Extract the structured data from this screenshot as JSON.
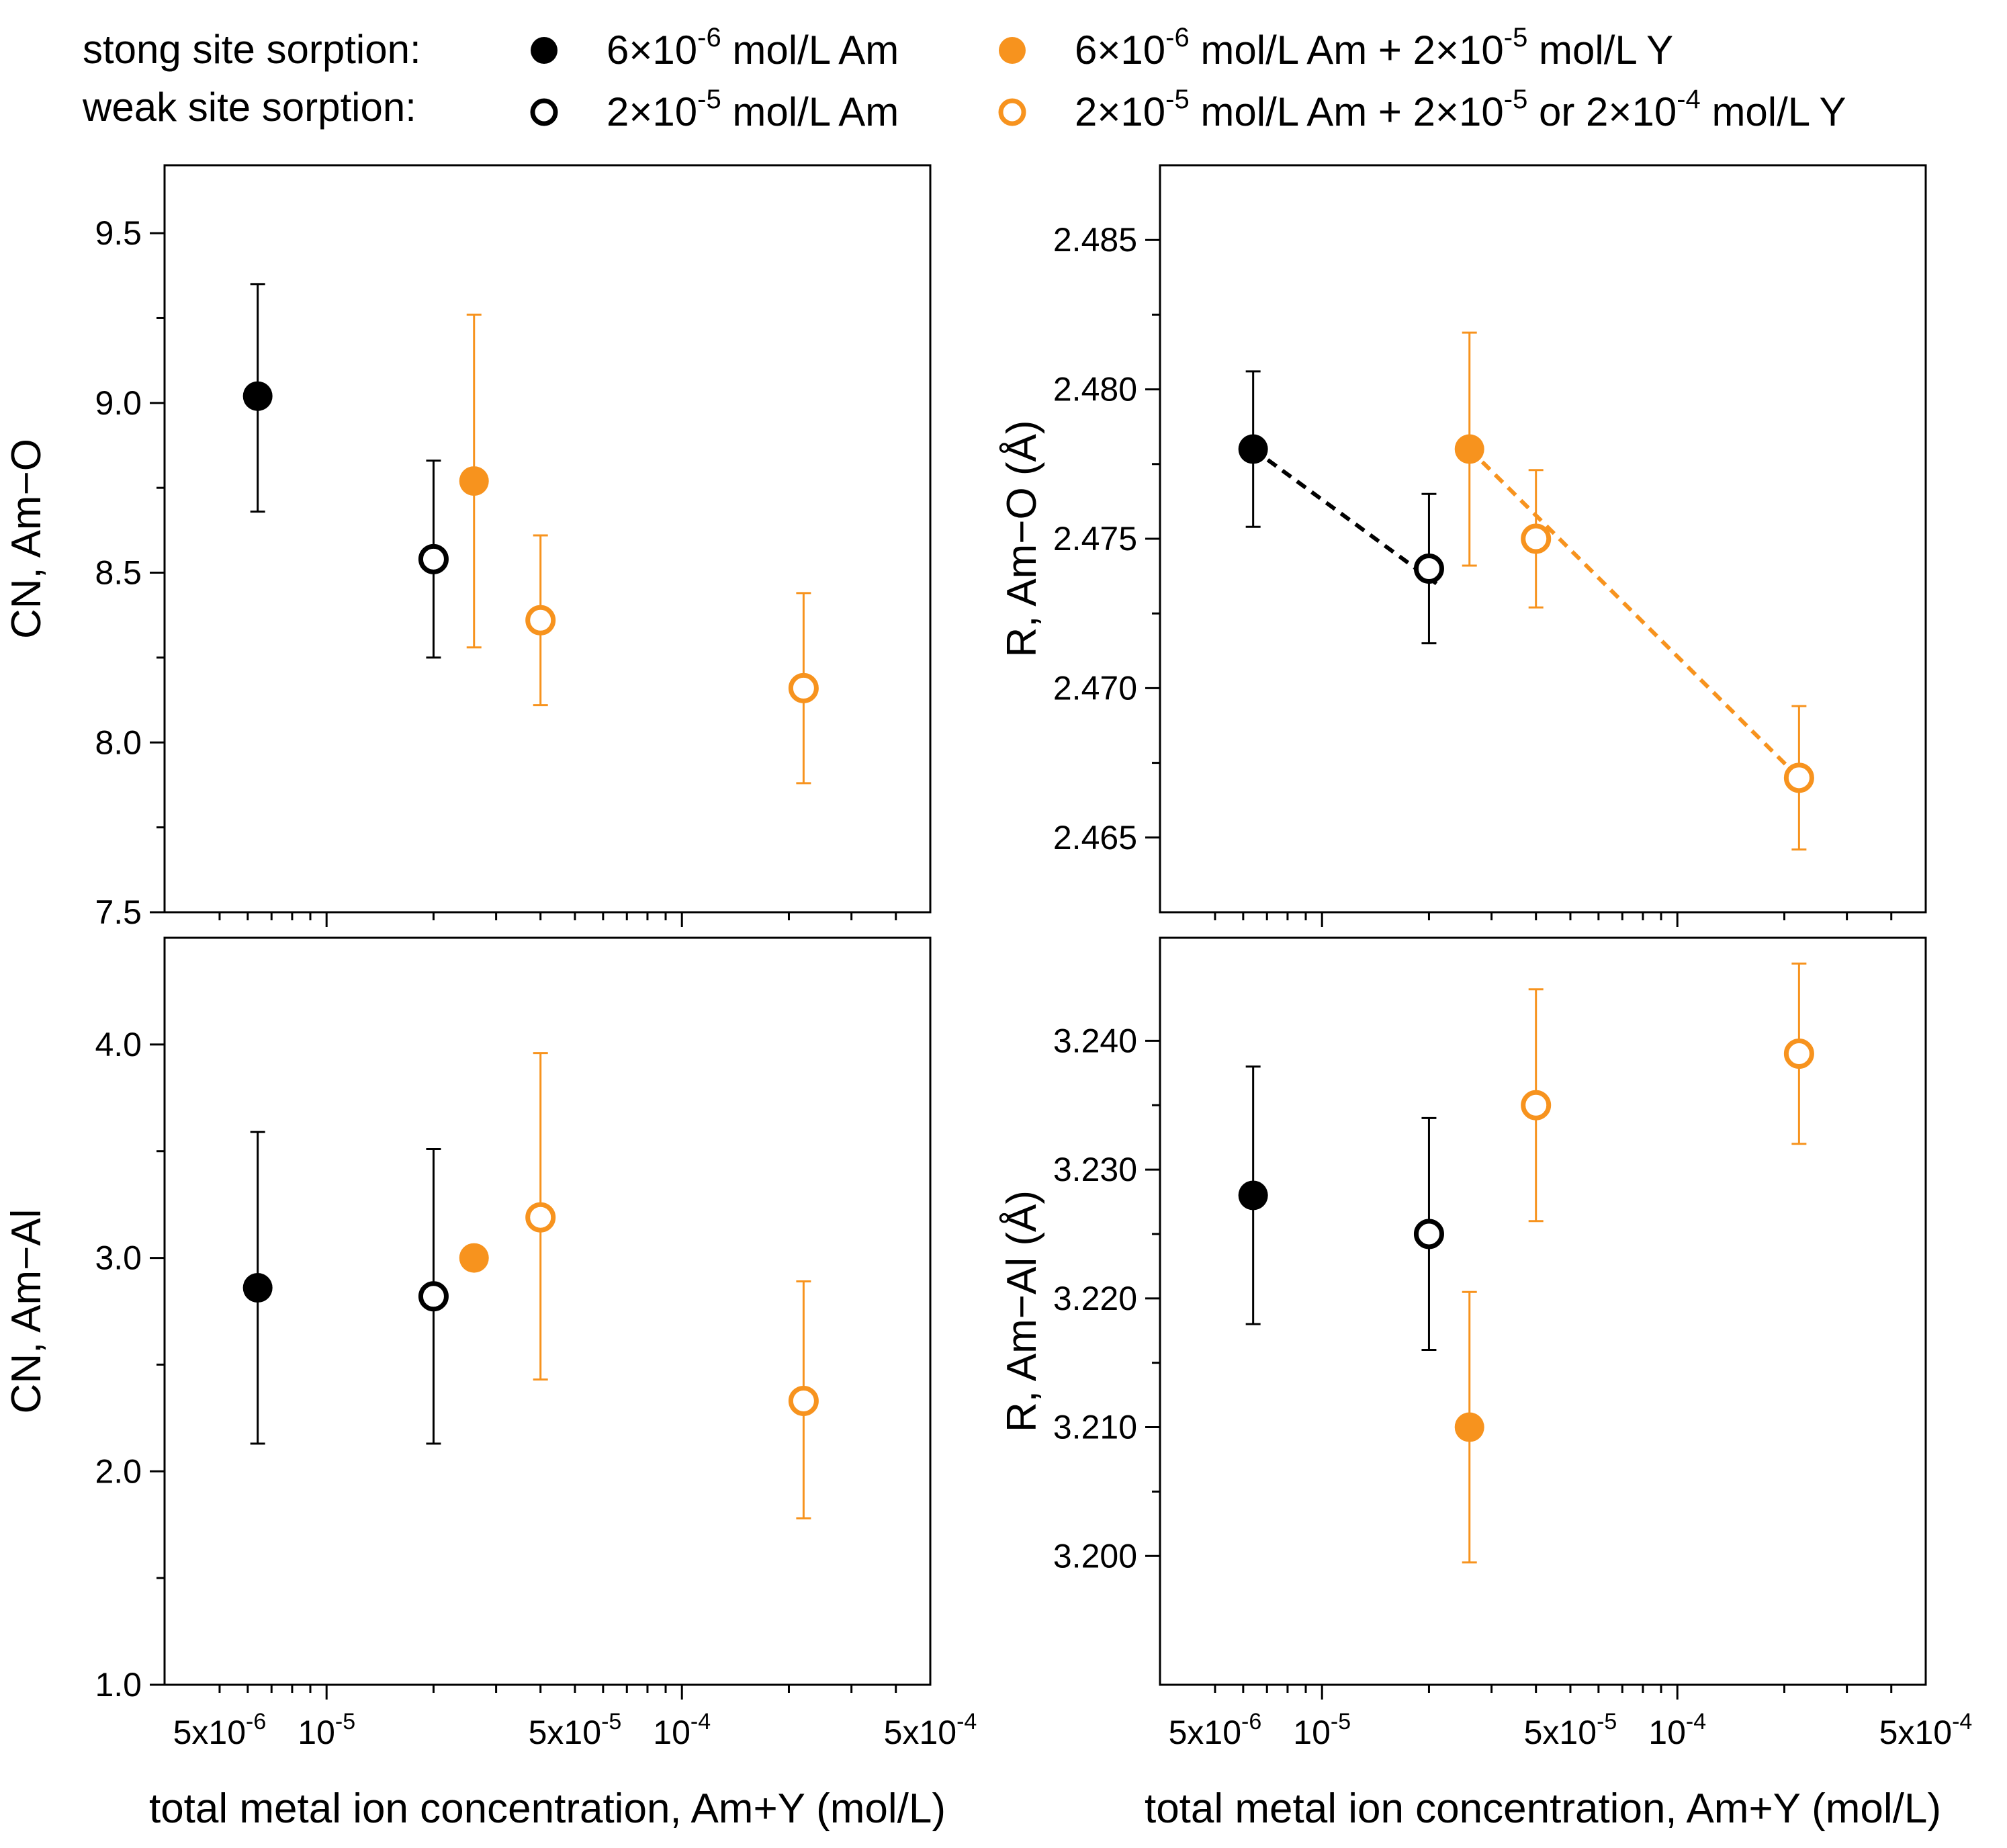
{
  "colors": {
    "black": "#000000",
    "orange": "#f7931e",
    "background": "#ffffff"
  },
  "legend": {
    "row1_label": "stong site sorption:",
    "row2_label": "weak site sorption:",
    "entries": [
      {
        "id": "strong_am",
        "marker": "filled",
        "color": "#000000",
        "parts": [
          [
            "6×10",
            ""
          ],
          [
            "-6",
            "sup"
          ],
          [
            " mol/L Am",
            ""
          ]
        ]
      },
      {
        "id": "strong_amy",
        "marker": "filled",
        "color": "#f7931e",
        "parts": [
          [
            "6×10",
            ""
          ],
          [
            "-6",
            "sup"
          ],
          [
            " mol/L Am + 2×10",
            ""
          ],
          [
            "-5",
            "sup"
          ],
          [
            " mol/L Y",
            ""
          ]
        ]
      },
      {
        "id": "weak_am",
        "marker": "open",
        "color": "#000000",
        "parts": [
          [
            "2×10",
            ""
          ],
          [
            "-5",
            "sup"
          ],
          [
            " mol/L Am",
            ""
          ]
        ]
      },
      {
        "id": "weak_amy",
        "marker": "open",
        "color": "#f7931e",
        "parts": [
          [
            "2×10",
            ""
          ],
          [
            "-5",
            "sup"
          ],
          [
            " mol/L Am + 2×10",
            ""
          ],
          [
            "-5",
            "sup"
          ],
          [
            " or 2×10",
            ""
          ],
          [
            "-4",
            "sup"
          ],
          [
            " mol/L Y",
            ""
          ]
        ]
      }
    ]
  },
  "x_axis": {
    "label": "total metal ion concentration, Am+Y (mol/L)",
    "scale": "log",
    "range": [
      3.5e-06,
      0.0005
    ],
    "tick_labels": [
      {
        "value": 5e-06,
        "parts": [
          [
            "5x10",
            ""
          ],
          [
            "-6",
            "sup"
          ]
        ]
      },
      {
        "value": 1e-05,
        "parts": [
          [
            "10",
            ""
          ],
          [
            "-5",
            "sup"
          ]
        ]
      },
      {
        "value": 5e-05,
        "parts": [
          [
            "5x10",
            ""
          ],
          [
            "-5",
            "sup"
          ]
        ]
      },
      {
        "value": 0.0001,
        "parts": [
          [
            "10",
            ""
          ],
          [
            "-4",
            "sup"
          ]
        ]
      },
      {
        "value": 0.0005,
        "parts": [
          [
            "5x10",
            ""
          ],
          [
            "-4",
            "sup"
          ]
        ]
      }
    ],
    "major_ticks": [
      1e-05,
      0.0001
    ],
    "minor_ticks": [
      5e-06,
      6e-06,
      7e-06,
      8e-06,
      9e-06,
      2e-05,
      3e-05,
      4e-05,
      5e-05,
      6e-05,
      7e-05,
      8e-05,
      9e-05,
      0.0002,
      0.0003,
      0.0004
    ]
  },
  "chart_data": [
    {
      "id": "cn_amo",
      "type": "scatter",
      "position": "top-left",
      "ylabel": "CN, Am−O",
      "ylim": [
        7.5,
        9.7
      ],
      "yticks": [
        7.5,
        8.0,
        8.5,
        9.0,
        9.5
      ],
      "ytick_labels": [
        "7.5",
        "8.0",
        "8.5",
        "9.0",
        "9.5"
      ],
      "show_x_tick_labels": false,
      "points": [
        {
          "x": 6.4e-06,
          "y": 9.02,
          "err_low": 8.68,
          "err_high": 9.35,
          "marker": "filled",
          "color": "#000000"
        },
        {
          "x": 2e-05,
          "y": 8.54,
          "err_low": 8.25,
          "err_high": 8.83,
          "marker": "open",
          "color": "#000000"
        },
        {
          "x": 2.6e-05,
          "y": 8.77,
          "err_low": 8.28,
          "err_high": 9.26,
          "marker": "filled",
          "color": "#f7931e"
        },
        {
          "x": 4e-05,
          "y": 8.36,
          "err_low": 8.11,
          "err_high": 8.61,
          "marker": "open",
          "color": "#f7931e"
        },
        {
          "x": 0.00022,
          "y": 8.16,
          "err_low": 7.88,
          "err_high": 8.44,
          "marker": "open",
          "color": "#f7931e"
        }
      ],
      "lines": []
    },
    {
      "id": "r_amo",
      "type": "scatter",
      "position": "top-right",
      "ylabel": "R, Am−O (Å)",
      "ylim": [
        2.4625,
        2.4875
      ],
      "yticks": [
        2.465,
        2.47,
        2.475,
        2.48,
        2.485
      ],
      "ytick_labels": [
        "2.465",
        "2.470",
        "2.475",
        "2.480",
        "2.485"
      ],
      "show_x_tick_labels": false,
      "points": [
        {
          "x": 6.4e-06,
          "y": 2.478,
          "err_low": 2.4754,
          "err_high": 2.4806,
          "marker": "filled",
          "color": "#000000"
        },
        {
          "x": 2e-05,
          "y": 2.474,
          "err_low": 2.4715,
          "err_high": 2.4765,
          "marker": "open",
          "color": "#000000"
        },
        {
          "x": 2.6e-05,
          "y": 2.478,
          "err_low": 2.4741,
          "err_high": 2.4819,
          "marker": "filled",
          "color": "#f7931e"
        },
        {
          "x": 4e-05,
          "y": 2.475,
          "err_low": 2.4727,
          "err_high": 2.4773,
          "marker": "open",
          "color": "#f7931e"
        },
        {
          "x": 0.00022,
          "y": 2.467,
          "err_low": 2.4646,
          "err_high": 2.4694,
          "marker": "open",
          "color": "#f7931e"
        }
      ],
      "lines": [
        {
          "color": "#000000",
          "style": "dashed",
          "x": [
            6.4e-06,
            2.1e-05
          ],
          "y": [
            2.478,
            2.4735
          ]
        },
        {
          "color": "#f7931e",
          "style": "dashed",
          "x": [
            2.6e-05,
            0.00022
          ],
          "y": [
            2.478,
            2.467
          ]
        }
      ]
    },
    {
      "id": "cn_amal",
      "type": "scatter",
      "position": "bottom-left",
      "ylabel": "CN, Am−Al",
      "ylim": [
        1.0,
        4.5
      ],
      "yticks": [
        1.0,
        2.0,
        3.0,
        4.0
      ],
      "ytick_labels": [
        "1.0",
        "2.0",
        "3.0",
        "4.0"
      ],
      "show_x_tick_labels": true,
      "points": [
        {
          "x": 6.4e-06,
          "y": 2.86,
          "err_low": 2.13,
          "err_high": 3.59,
          "marker": "filled",
          "color": "#000000"
        },
        {
          "x": 2e-05,
          "y": 2.82,
          "err_low": 2.13,
          "err_high": 3.51,
          "marker": "open",
          "color": "#000000"
        },
        {
          "x": 2.6e-05,
          "y": 3.0,
          "err_low": 3.0,
          "err_high": 3.0,
          "marker": "filled",
          "color": "#f7931e"
        },
        {
          "x": 4e-05,
          "y": 3.19,
          "err_low": 2.43,
          "err_high": 3.96,
          "marker": "open",
          "color": "#f7931e"
        },
        {
          "x": 0.00022,
          "y": 2.33,
          "err_low": 1.78,
          "err_high": 2.89,
          "marker": "open",
          "color": "#f7931e"
        }
      ],
      "lines": []
    },
    {
      "id": "r_amal",
      "type": "scatter",
      "position": "bottom-right",
      "ylabel": "R, Am−Al (Å)",
      "ylim": [
        3.19,
        3.248
      ],
      "yticks": [
        3.2,
        3.21,
        3.22,
        3.23,
        3.24
      ],
      "ytick_labels": [
        "3.200",
        "3.210",
        "3.220",
        "3.230",
        "3.240"
      ],
      "show_x_tick_labels": true,
      "points": [
        {
          "x": 6.4e-06,
          "y": 3.228,
          "err_low": 3.218,
          "err_high": 3.238,
          "marker": "filled",
          "color": "#000000"
        },
        {
          "x": 2e-05,
          "y": 3.225,
          "err_low": 3.216,
          "err_high": 3.234,
          "marker": "open",
          "color": "#000000"
        },
        {
          "x": 2.6e-05,
          "y": 3.21,
          "err_low": 3.1995,
          "err_high": 3.2205,
          "marker": "filled",
          "color": "#f7931e"
        },
        {
          "x": 4e-05,
          "y": 3.235,
          "err_low": 3.226,
          "err_high": 3.244,
          "marker": "open",
          "color": "#f7931e"
        },
        {
          "x": 0.00022,
          "y": 3.239,
          "err_low": 3.232,
          "err_high": 3.246,
          "marker": "open",
          "color": "#f7931e"
        }
      ],
      "lines": []
    }
  ]
}
